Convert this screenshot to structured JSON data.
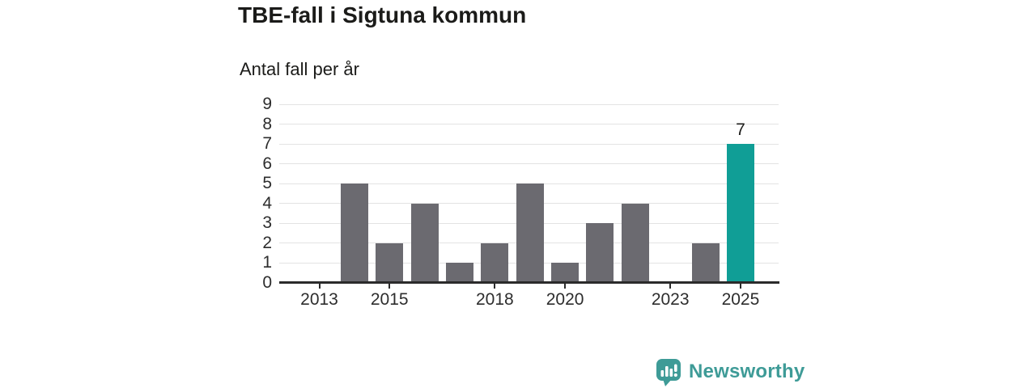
{
  "header": {
    "title": "TBE-fall i Sigtuna kommun",
    "subtitle": "Antal fall per år"
  },
  "chart_data": {
    "type": "bar",
    "title": "TBE-fall i Sigtuna kommun",
    "subtitle": "Antal fall per år",
    "categories": [
      2013,
      2014,
      2015,
      2016,
      2017,
      2018,
      2019,
      2020,
      2021,
      2022,
      2023,
      2024,
      2025
    ],
    "values": [
      0,
      5,
      2,
      4,
      1,
      2,
      5,
      1,
      3,
      4,
      0,
      2,
      7
    ],
    "highlight": {
      "year": 2025,
      "value": 7,
      "label": "7"
    },
    "xticks": [
      2013,
      2015,
      2018,
      2020,
      2023,
      2025
    ],
    "yticks": [
      0,
      1,
      2,
      3,
      4,
      5,
      6,
      7,
      8,
      9
    ],
    "ylim": [
      0,
      9
    ],
    "grid": true,
    "xlabel": "",
    "ylabel": "Antal fall per år",
    "bar_color": "#6b6a70",
    "highlight_color": "#109E96",
    "grid_color": "#e3e3e3",
    "axis_color": "#2b2b2b"
  },
  "branding": {
    "logo_text": "Newsworthy",
    "logo_color": "#3E9B97",
    "logo_icon": "bar-chart-speech-bubble-icon"
  }
}
